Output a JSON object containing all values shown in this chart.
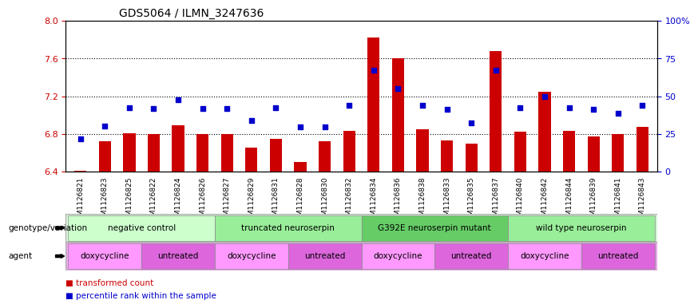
{
  "title": "GDS5064 / ILMN_3247636",
  "samples": [
    "GSM1126821",
    "GSM1126823",
    "GSM1126825",
    "GSM1126822",
    "GSM1126824",
    "GSM1126826",
    "GSM1126827",
    "GSM1126829",
    "GSM1126831",
    "GSM1126828",
    "GSM1126830",
    "GSM1126832",
    "GSM1126834",
    "GSM1126836",
    "GSM1126838",
    "GSM1126833",
    "GSM1126835",
    "GSM1126837",
    "GSM1126840",
    "GSM1126842",
    "GSM1126844",
    "GSM1126839",
    "GSM1126841",
    "GSM1126843"
  ],
  "bar_values": [
    6.41,
    6.72,
    6.81,
    6.8,
    6.89,
    6.8,
    6.8,
    6.65,
    6.75,
    6.5,
    6.72,
    6.83,
    7.82,
    7.6,
    6.85,
    6.73,
    6.7,
    7.68,
    6.82,
    7.25,
    6.83,
    6.77,
    6.8,
    6.87
  ],
  "percentile_values": [
    6.75,
    6.88,
    7.08,
    7.07,
    7.16,
    7.07,
    7.07,
    6.94,
    7.08,
    6.87,
    6.87,
    7.1,
    7.48,
    7.28,
    7.1,
    7.06,
    6.92,
    7.48,
    7.08,
    7.2,
    7.08,
    7.06,
    7.02,
    7.1
  ],
  "ylim_left": [
    6.4,
    8.0
  ],
  "ylim_right": [
    0,
    100
  ],
  "yticks_left": [
    6.4,
    6.8,
    7.2,
    7.6,
    8.0
  ],
  "yticks_right": [
    0,
    25,
    50,
    75,
    100
  ],
  "ytick_labels_right": [
    "0",
    "25",
    "50",
    "75",
    "100%"
  ],
  "bar_color": "#cc0000",
  "dot_color": "#0000cc",
  "bar_bottom": 6.4,
  "genotype_groups": [
    {
      "label": "negative control",
      "start": 0,
      "end": 5,
      "color": "#ccffcc"
    },
    {
      "label": "truncated neuroserpin",
      "start": 6,
      "end": 11,
      "color": "#99ee99"
    },
    {
      "label": "G392E neuroserpin mutant",
      "start": 12,
      "end": 17,
      "color": "#66cc66"
    },
    {
      "label": "wild type neuroserpin",
      "start": 18,
      "end": 23,
      "color": "#99ee99"
    }
  ],
  "agent_groups": [
    {
      "label": "doxycycline",
      "start": 0,
      "end": 2,
      "color": "#ff99ff"
    },
    {
      "label": "untreated",
      "start": 3,
      "end": 5,
      "color": "#dd66dd"
    },
    {
      "label": "doxycycline",
      "start": 6,
      "end": 8,
      "color": "#ff99ff"
    },
    {
      "label": "untreated",
      "start": 9,
      "end": 11,
      "color": "#dd66dd"
    },
    {
      "label": "doxycycline",
      "start": 12,
      "end": 14,
      "color": "#ff99ff"
    },
    {
      "label": "untreated",
      "start": 15,
      "end": 17,
      "color": "#dd66dd"
    },
    {
      "label": "doxycycline",
      "start": 18,
      "end": 20,
      "color": "#ff99ff"
    },
    {
      "label": "untreated",
      "start": 21,
      "end": 23,
      "color": "#dd66dd"
    }
  ],
  "legend_items": [
    {
      "label": "transformed count",
      "color": "#cc0000",
      "marker": "s"
    },
    {
      "label": "percentile rank within the sample",
      "color": "#0000cc",
      "marker": "s"
    }
  ]
}
